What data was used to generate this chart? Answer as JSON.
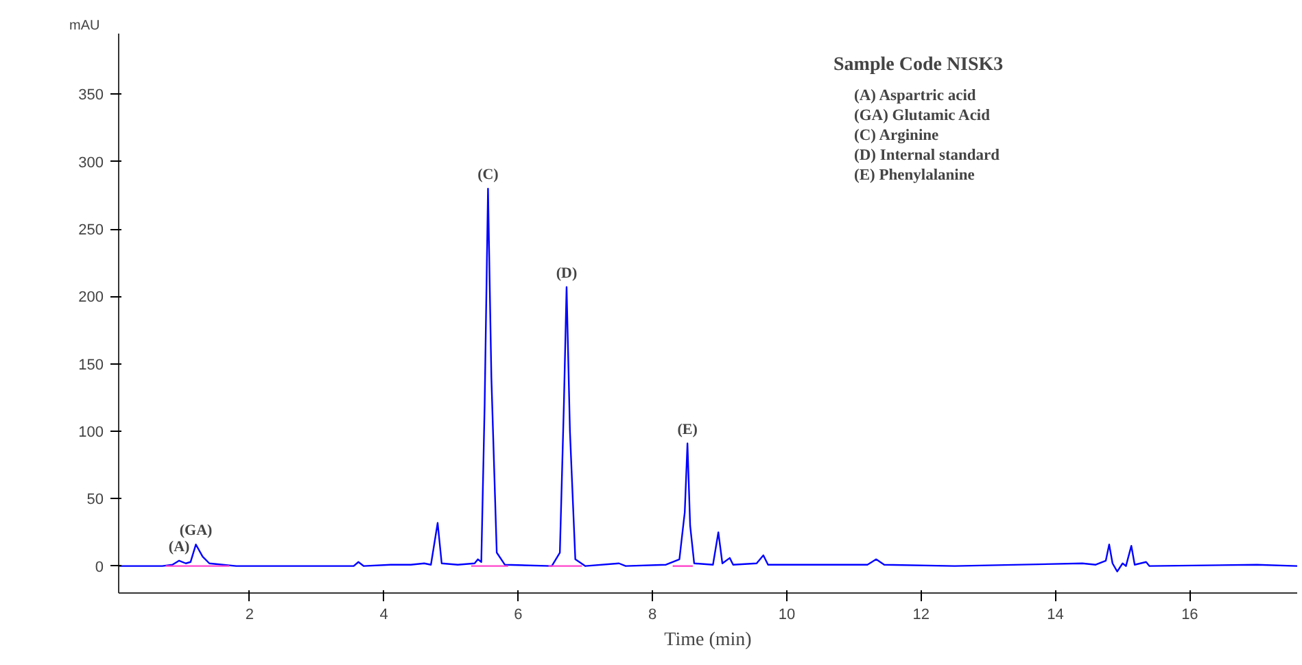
{
  "chart_data": {
    "type": "line",
    "xlabel": "Time (min)",
    "ylabel": "mAU",
    "xlim": [
      0.05,
      17.6
    ],
    "ylim": [
      -20,
      395
    ],
    "xticks": [
      2,
      4,
      6,
      8,
      10,
      12,
      14,
      16
    ],
    "yticks": [
      0,
      50,
      100,
      150,
      200,
      250,
      300,
      350
    ],
    "grid": false,
    "marker": "none",
    "line_style": "solid",
    "series": [
      {
        "color": "#0000ff",
        "x": [
          0.05,
          0.7,
          0.85,
          0.95,
          1.05,
          1.12,
          1.2,
          1.3,
          1.4,
          1.6,
          1.8,
          3.0,
          3.55,
          3.62,
          3.7,
          4.1,
          4.4,
          4.6,
          4.7,
          4.8,
          4.86,
          5.1,
          5.35,
          5.4,
          5.45,
          5.5,
          5.55,
          5.6,
          5.68,
          5.8,
          6.5,
          6.62,
          6.68,
          6.72,
          6.77,
          6.85,
          7.0,
          7.5,
          7.6,
          8.2,
          8.4,
          8.48,
          8.52,
          8.56,
          8.62,
          8.9,
          8.98,
          9.04,
          9.15,
          9.2,
          9.55,
          9.65,
          9.72,
          10.2,
          11.2,
          11.33,
          11.45,
          12.5,
          14.4,
          14.6,
          14.75,
          14.8,
          14.85,
          14.92,
          15.0,
          15.05,
          15.13,
          15.18,
          15.35,
          15.4,
          17.0,
          17.6
        ],
        "values": [
          0,
          0,
          1,
          4,
          2,
          3,
          16,
          7,
          2,
          1,
          0,
          0,
          0,
          3,
          0,
          1,
          1,
          2,
          1,
          32,
          2,
          1,
          2,
          5,
          3,
          120,
          280,
          140,
          10,
          1,
          0,
          10,
          120,
          207,
          100,
          5,
          0,
          2,
          0,
          1,
          5,
          40,
          91,
          30,
          2,
          1,
          25,
          2,
          6,
          1,
          2,
          8,
          1,
          1,
          1,
          5,
          1,
          0,
          2,
          1,
          4,
          16,
          2,
          -4,
          2,
          0,
          15,
          1,
          3,
          0,
          1,
          0
        ]
      },
      {
        "color": "#ff44cc",
        "x": [
          0.75,
          1.7
        ],
        "values": [
          0,
          0
        ]
      },
      {
        "color": "#ff44cc",
        "x": [
          5.3,
          5.85
        ],
        "values": [
          0,
          0
        ]
      },
      {
        "color": "#ff44cc",
        "x": [
          6.45,
          6.95
        ],
        "values": [
          0,
          0
        ]
      },
      {
        "color": "#ff44cc",
        "x": [
          8.3,
          8.6
        ],
        "values": [
          0,
          0
        ]
      }
    ],
    "annotations": [
      {
        "text": "(A)",
        "x": 0.95,
        "y": 4
      },
      {
        "text": "(GA)",
        "x": 1.2,
        "y": 16
      },
      {
        "text": "(C)",
        "x": 5.55,
        "y": 280
      },
      {
        "text": "(D)",
        "x": 6.72,
        "y": 207
      },
      {
        "text": "(E)",
        "x": 8.52,
        "y": 91
      },
      "Sample Code NISK3",
      "(A) Aspartric acid",
      "(GA) Glutamic Acid",
      "(C) Arginine",
      "(D) Internal standard",
      "(E) Phenylalanine"
    ]
  }
}
